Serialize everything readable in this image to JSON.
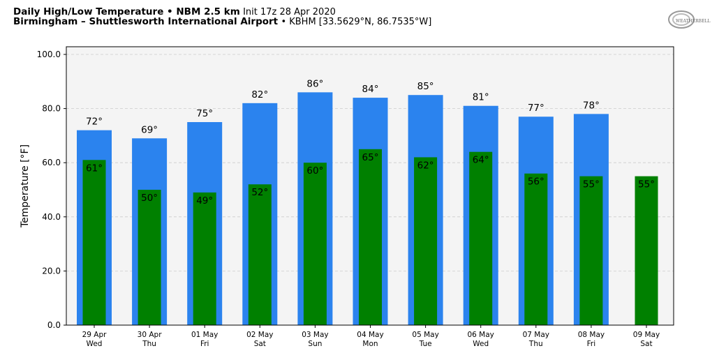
{
  "header": {
    "title_bold": "Daily High/Low Temperature • NBM 2.5 km",
    "init": "Init 17z 28 Apr 2020",
    "station_bold": "Birmingham – Shuttlesworth International Airport",
    "station_info": "• KBHM [33.5629°N, 86.7535°W]"
  },
  "logo_text": "WeatherBELL",
  "chart_data": {
    "type": "bar",
    "title": "Daily High/Low Temperature • NBM 2.5 km",
    "ylabel": "Temperature [°F]",
    "ylim": [
      0,
      100
    ],
    "yticks": [
      "0.0",
      "20.0",
      "40.0",
      "60.0",
      "80.0",
      "100.0"
    ],
    "grid": true,
    "categories": [
      [
        "29 Apr",
        "Wed"
      ],
      [
        "30 Apr",
        "Thu"
      ],
      [
        "01 May",
        "Fri"
      ],
      [
        "02 May",
        "Sat"
      ],
      [
        "03 May",
        "Sun"
      ],
      [
        "04 May",
        "Mon"
      ],
      [
        "05 May",
        "Tue"
      ],
      [
        "06 May",
        "Wed"
      ],
      [
        "07 May",
        "Thu"
      ],
      [
        "08 May",
        "Fri"
      ],
      [
        "09 May",
        "Sat"
      ]
    ],
    "series": [
      {
        "values": [
          72,
          69,
          75,
          82,
          86,
          84,
          85,
          81,
          77,
          78,
          null
        ],
        "color": "#2b83ee"
      },
      {
        "values": [
          61,
          50,
          49,
          52,
          60,
          65,
          62,
          64,
          56,
          55,
          55
        ],
        "color": "#008000"
      }
    ]
  }
}
